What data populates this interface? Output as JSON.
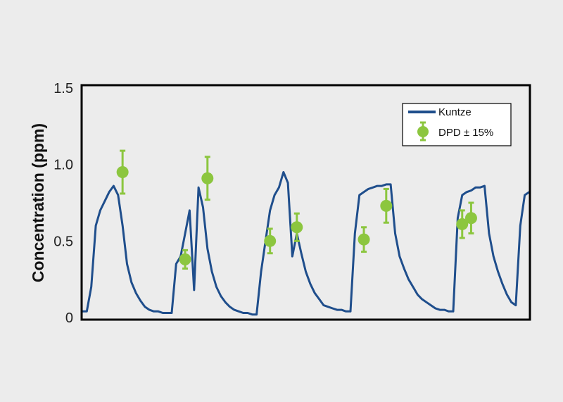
{
  "chart_data": {
    "type": "line",
    "title": "",
    "xlabel": "",
    "ylabel": "Concentration (ppm)",
    "ylim": [
      0,
      1.5
    ],
    "yticks": [
      "0",
      "0.5",
      "1.0",
      "1.5"
    ],
    "grid": false,
    "legend_position": "top-right",
    "series": [
      {
        "name": "Kuntze",
        "kind": "line",
        "color": "#1f4e8c",
        "x": [
          0,
          1,
          2,
          3,
          4,
          5,
          6,
          7,
          8,
          9,
          10,
          11,
          12,
          13,
          14,
          15,
          16,
          17,
          18,
          19,
          20,
          21,
          22,
          23,
          24,
          25,
          26,
          27,
          28,
          29,
          30,
          31,
          32,
          33,
          34,
          35,
          36,
          37,
          38,
          39,
          40,
          41,
          42,
          43,
          44,
          45,
          46,
          47,
          48,
          49,
          50,
          51,
          52,
          53,
          54,
          55,
          56,
          57,
          58,
          59,
          60,
          61,
          62,
          63,
          64,
          65,
          66,
          67,
          68,
          69,
          70,
          71,
          72,
          73,
          74,
          75,
          76,
          77,
          78,
          79,
          80,
          81,
          82,
          83,
          84,
          85,
          86,
          87,
          88,
          89,
          90,
          91,
          92,
          93,
          94,
          95,
          96,
          97,
          98,
          99,
          100
        ],
        "y": [
          0.04,
          0.04,
          0.2,
          0.6,
          0.7,
          0.76,
          0.82,
          0.86,
          0.8,
          0.6,
          0.35,
          0.23,
          0.16,
          0.11,
          0.07,
          0.05,
          0.04,
          0.04,
          0.03,
          0.03,
          0.03,
          0.35,
          0.4,
          0.55,
          0.7,
          0.18,
          0.85,
          0.72,
          0.45,
          0.3,
          0.2,
          0.14,
          0.1,
          0.07,
          0.05,
          0.04,
          0.03,
          0.03,
          0.02,
          0.02,
          0.3,
          0.5,
          0.7,
          0.8,
          0.85,
          0.95,
          0.88,
          0.4,
          0.55,
          0.42,
          0.3,
          0.22,
          0.16,
          0.12,
          0.08,
          0.07,
          0.06,
          0.05,
          0.05,
          0.04,
          0.04,
          0.55,
          0.8,
          0.82,
          0.84,
          0.85,
          0.86,
          0.86,
          0.87,
          0.87,
          0.55,
          0.4,
          0.32,
          0.25,
          0.2,
          0.15,
          0.12,
          0.1,
          0.08,
          0.06,
          0.05,
          0.05,
          0.04,
          0.04,
          0.65,
          0.8,
          0.82,
          0.83,
          0.85,
          0.85,
          0.86,
          0.55,
          0.4,
          0.3,
          0.22,
          0.15,
          0.1,
          0.08,
          0.6,
          0.8,
          0.82
        ]
      },
      {
        "name": "DPD ± 15%",
        "kind": "errorbar-points",
        "color": "#8cc63f",
        "x": [
          9,
          23,
          28,
          42,
          48,
          63,
          68,
          85,
          87
        ],
        "y": [
          0.95,
          0.38,
          0.91,
          0.5,
          0.59,
          0.51,
          0.73,
          0.61,
          0.65
        ],
        "error": [
          0.14,
          0.06,
          0.14,
          0.08,
          0.09,
          0.08,
          0.11,
          0.09,
          0.1
        ]
      }
    ]
  }
}
